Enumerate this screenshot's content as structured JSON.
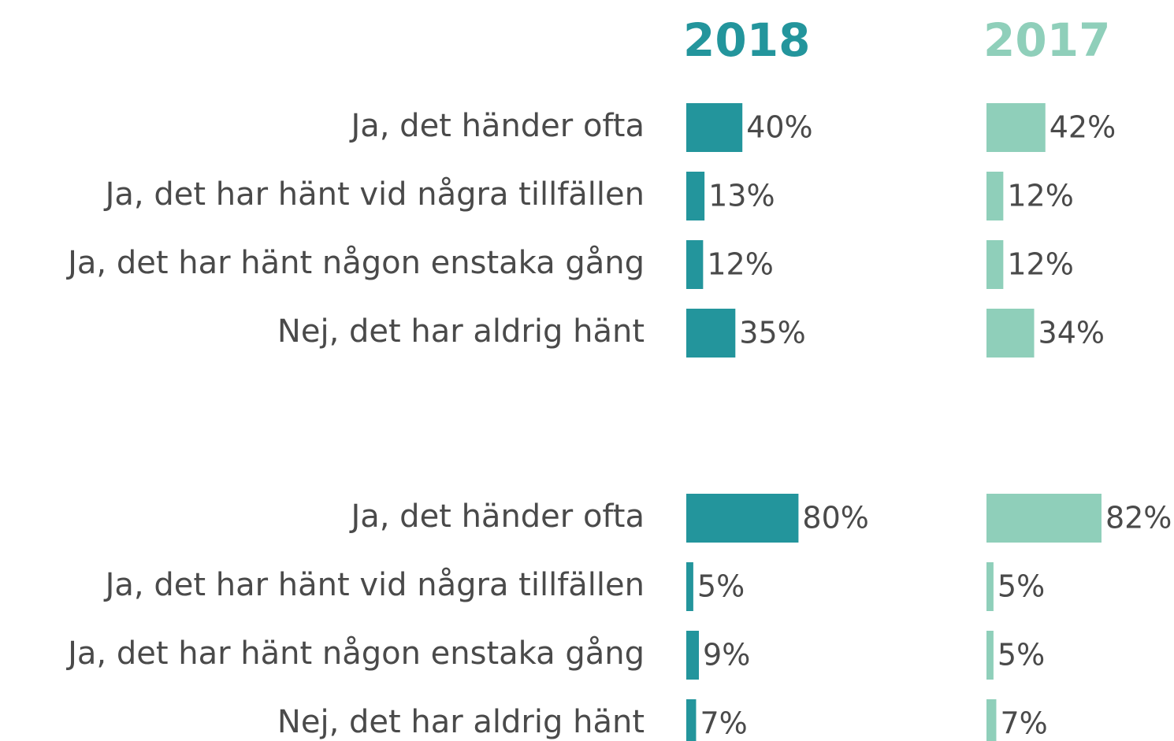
{
  "chart_data": {
    "type": "bar",
    "series": [
      {
        "name": "2018",
        "color": "#23959c"
      },
      {
        "name": "2017",
        "color": "#8fcfba"
      }
    ],
    "panels": [
      {
        "categories": [
          "Ja, det händer ofta",
          "Ja, det har hänt vid några tillfällen",
          "Ja, det har hänt någon enstaka gång",
          "Nej, det har aldrig hänt"
        ],
        "values": [
          [
            40,
            13,
            12,
            35
          ],
          [
            42,
            12,
            12,
            34
          ]
        ],
        "value_labels": [
          [
            "40%",
            "13%",
            "12%",
            "35%"
          ],
          [
            "42%",
            "12%",
            "12%",
            "34%"
          ]
        ]
      },
      {
        "categories": [
          "Ja, det händer ofta",
          "Ja, det har hänt vid några tillfällen",
          "Ja, det har hänt någon enstaka gång",
          "Nej, det har aldrig hänt"
        ],
        "values": [
          [
            80,
            5,
            9,
            7
          ],
          [
            82,
            5,
            5,
            7
          ]
        ],
        "value_labels": [
          [
            "80%",
            "5%",
            "9%",
            "7%"
          ],
          [
            "82%",
            "5%",
            "5%",
            "7%"
          ]
        ]
      }
    ]
  }
}
